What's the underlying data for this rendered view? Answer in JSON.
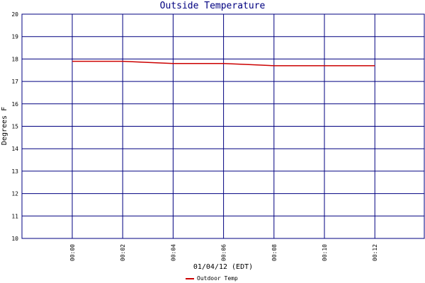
{
  "chart_data": {
    "type": "line",
    "title": "Outside Temperature",
    "xlabel": "01/04/12 (EDT)",
    "ylabel": "Degrees F",
    "x_tick_labels": [
      "00:00",
      "00:02",
      "00:04",
      "00:06",
      "00:08",
      "00:10",
      "00:12"
    ],
    "y_tick_labels": [
      "10",
      "11",
      "12",
      "13",
      "14",
      "15",
      "16",
      "17",
      "18",
      "19",
      "20"
    ],
    "ylim": [
      10,
      20
    ],
    "grid": true,
    "legend_position": "bottom",
    "series": [
      {
        "name": "Outdoor Temp",
        "color": "#cc0000",
        "x_minutes": [
          0,
          1,
          2,
          3,
          4,
          5,
          6,
          7,
          8,
          9,
          10,
          11,
          12
        ],
        "values": [
          17.9,
          17.9,
          17.9,
          17.85,
          17.8,
          17.8,
          17.8,
          17.75,
          17.7,
          17.7,
          17.7,
          17.7,
          17.7
        ]
      }
    ]
  },
  "colors": {
    "grid": "#000080",
    "title": "#000080"
  }
}
